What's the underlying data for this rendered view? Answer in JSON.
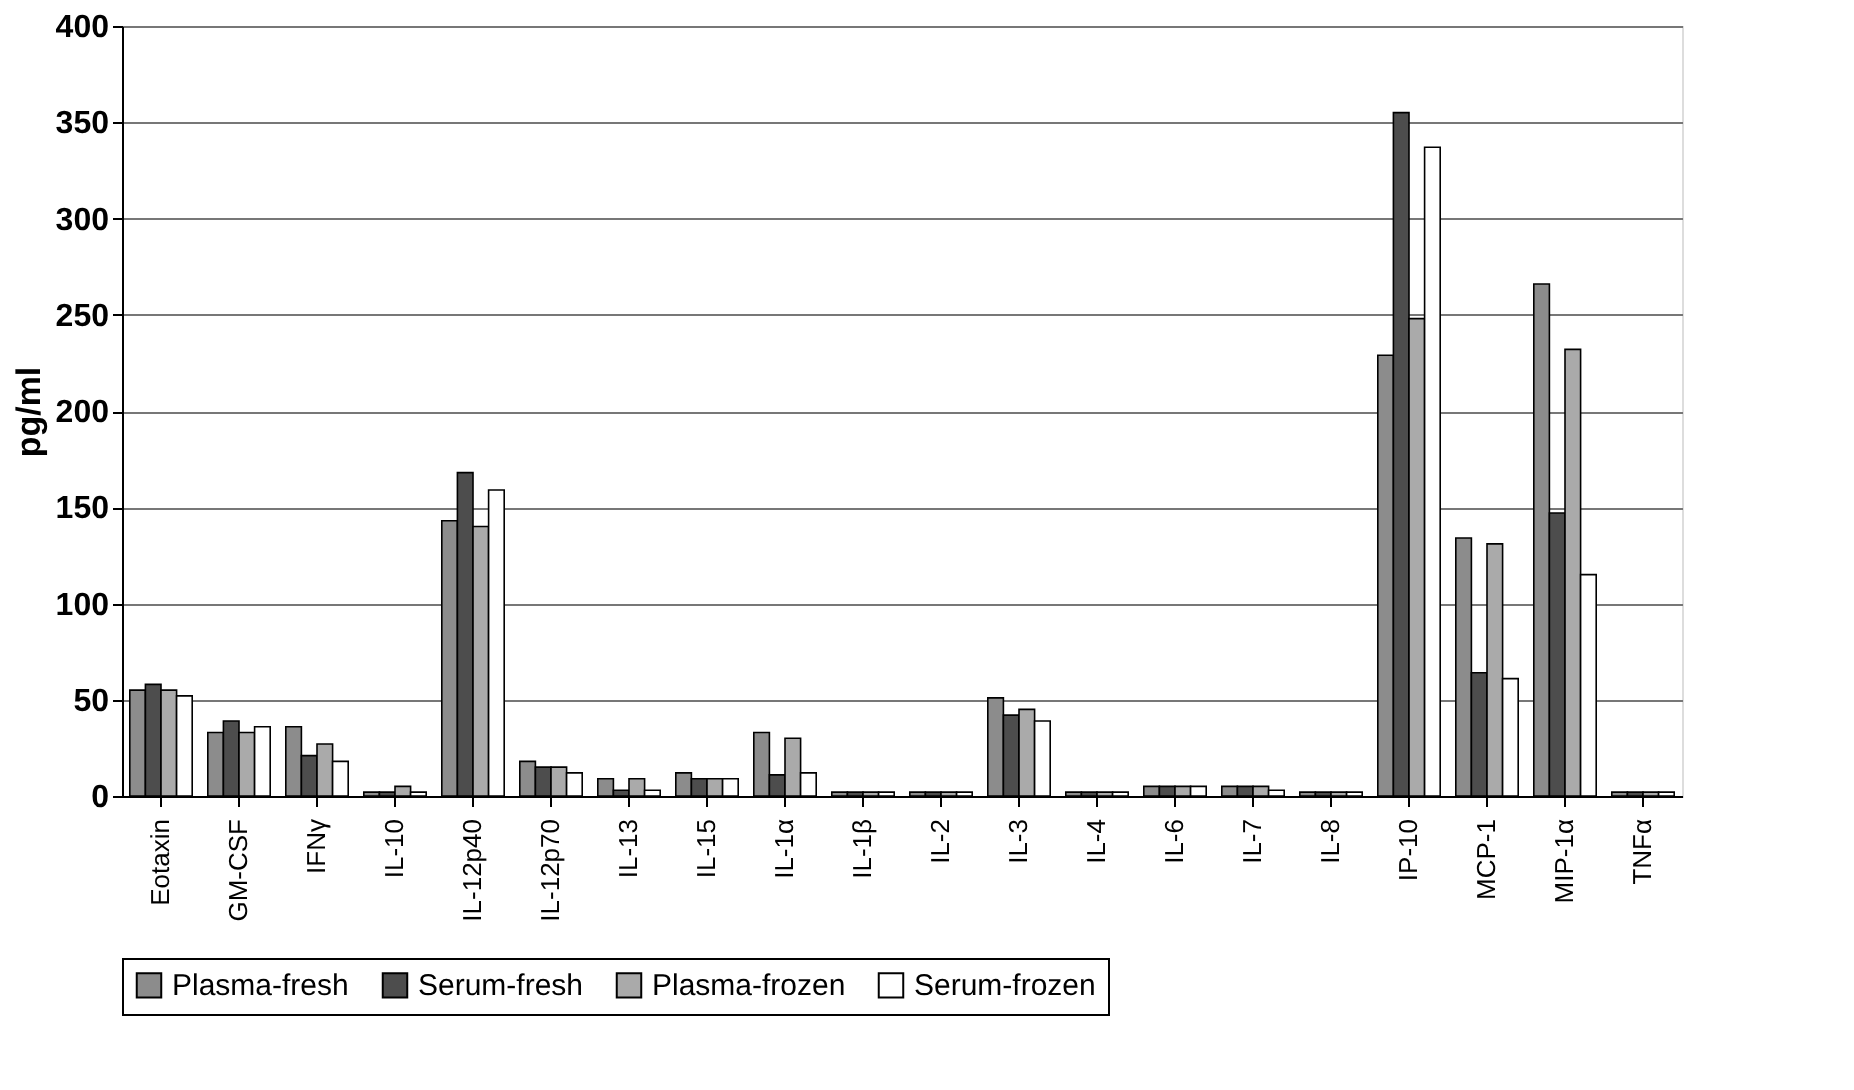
{
  "chart_data": {
    "type": "bar",
    "ylabel": "pg/ml",
    "categories": [
      "Eotaxin",
      "GM-CSF",
      "IFNγ",
      "IL-10",
      "IL-12p40",
      "IL-12p70",
      "IL-13",
      "IL-15",
      "IL-1α",
      "IL-1β",
      "IL-2",
      "IL-3",
      "IL-4",
      "IL-6",
      "IL-7",
      "IL-8",
      "IP-10",
      "MCP-1",
      "MIP-1α",
      "TNFα"
    ],
    "series": [
      {
        "name": "Plasma-fresh",
        "color": "#8c8c8c",
        "values": [
          55,
          33,
          36,
          2,
          143,
          18,
          9,
          12,
          33,
          2,
          2,
          51,
          2,
          5,
          5,
          2,
          229,
          134,
          266,
          2
        ]
      },
      {
        "name": "Serum-fresh",
        "color": "#4d4d4d",
        "values": [
          58,
          39,
          21,
          2,
          168,
          15,
          3,
          9,
          11,
          2,
          2,
          42,
          2,
          5,
          5,
          2,
          355,
          64,
          147,
          2
        ]
      },
      {
        "name": "Plasma-frozen",
        "color": "#aaaaaa",
        "values": [
          55,
          33,
          27,
          5,
          140,
          15,
          9,
          9,
          30,
          2,
          2,
          45,
          2,
          5,
          5,
          2,
          248,
          131,
          232,
          2
        ]
      },
      {
        "name": "Serum-frozen",
        "color": "#ffffff",
        "values": [
          52,
          36,
          18,
          2,
          159,
          12,
          3,
          9,
          12,
          2,
          2,
          39,
          2,
          5,
          3,
          2,
          337,
          61,
          115,
          2
        ]
      }
    ],
    "ylim": [
      0,
      400
    ],
    "yticks": [
      0,
      50,
      100,
      150,
      200,
      250,
      300,
      350,
      400
    ],
    "grid": "y",
    "legend": "bottom"
  }
}
